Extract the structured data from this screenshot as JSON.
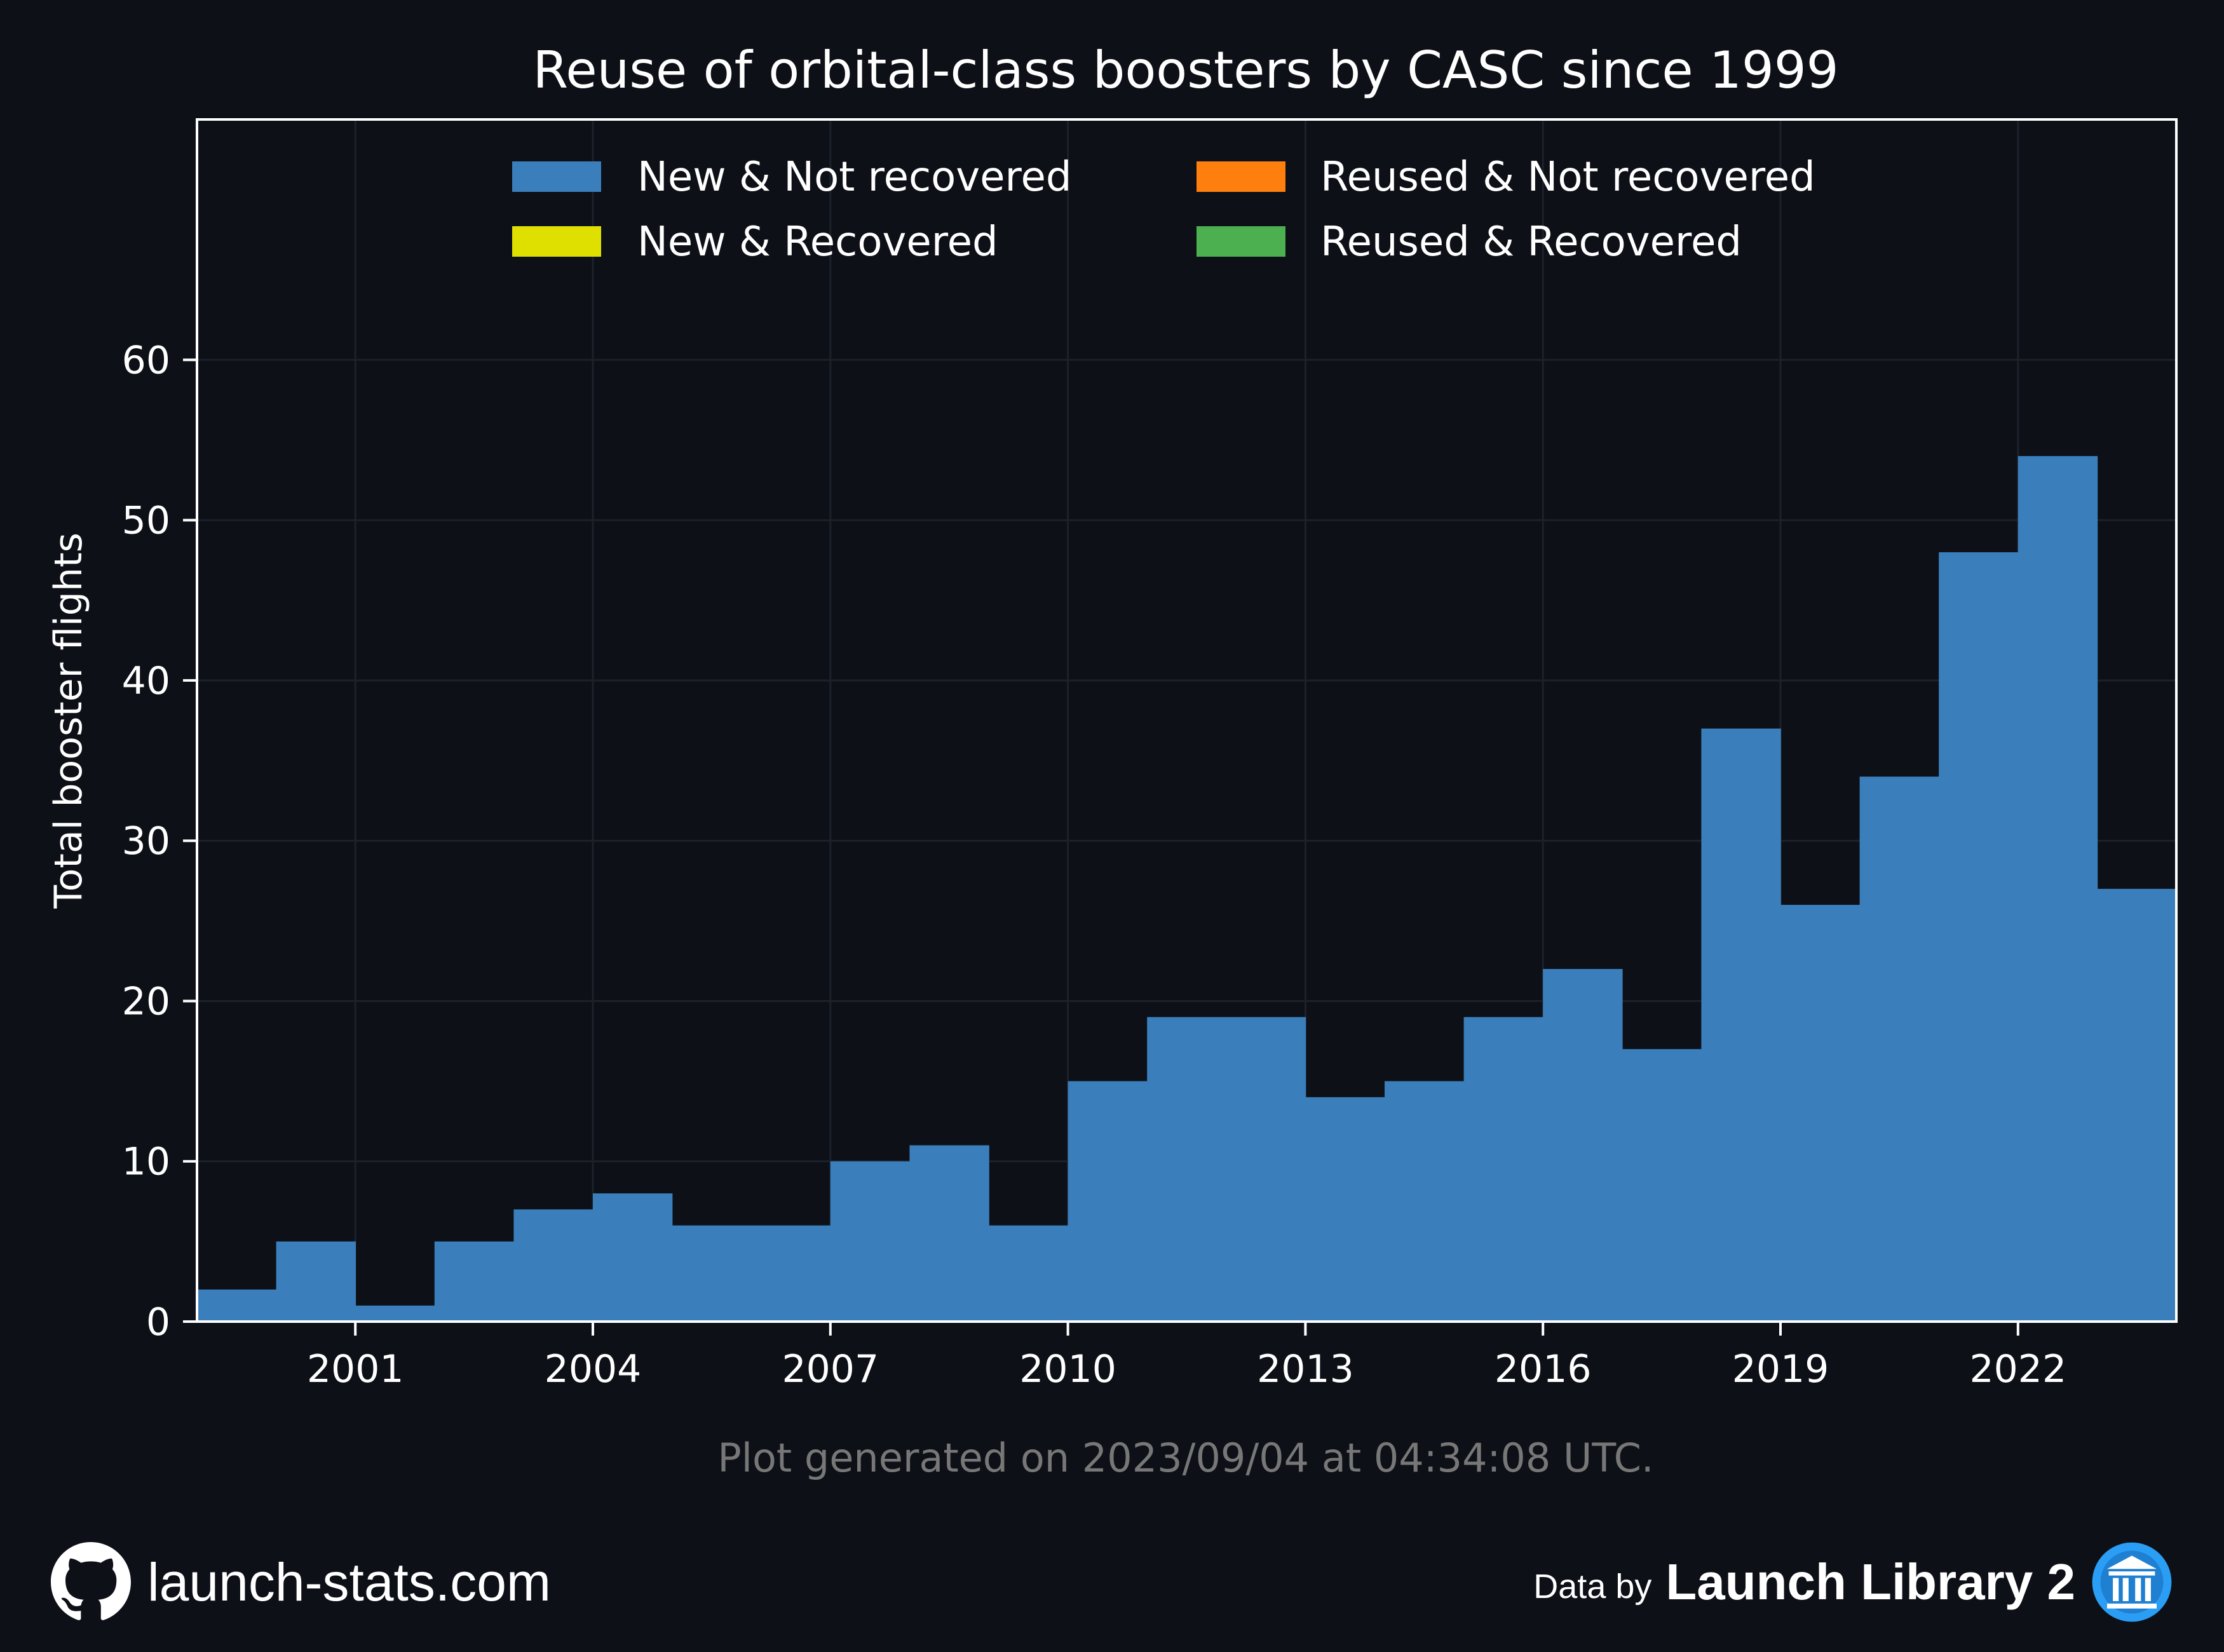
{
  "chart_data": {
    "type": "bar",
    "title": "Reuse of orbital-class boosters by CASC since 1999",
    "ylabel": "Total booster flights",
    "xlabel": "",
    "x_start_year": 1999,
    "x_end_year": 2024,
    "categories": [
      "1999",
      "2000",
      "2001",
      "2002",
      "2003",
      "2004",
      "2005",
      "2006",
      "2007",
      "2008",
      "2009",
      "2010",
      "2011",
      "2012",
      "2013",
      "2014",
      "2015",
      "2016",
      "2017",
      "2018",
      "2019",
      "2020",
      "2021",
      "2022",
      "2023"
    ],
    "series": [
      {
        "name": "New & Not recovered",
        "color": "#3a7fbb",
        "values": [
          2,
          5,
          1,
          5,
          7,
          8,
          6,
          6,
          10,
          11,
          6,
          15,
          19,
          19,
          14,
          15,
          19,
          22,
          17,
          37,
          26,
          34,
          48,
          54,
          27
        ]
      },
      {
        "name": "New & Recovered",
        "color": "#e0e000",
        "values": [
          0,
          0,
          0,
          0,
          0,
          0,
          0,
          0,
          0,
          0,
          0,
          0,
          0,
          0,
          0,
          0,
          0,
          0,
          0,
          0,
          0,
          0,
          0,
          0,
          0
        ]
      },
      {
        "name": "Reused & Not recovered",
        "color": "#ff7f0e",
        "values": [
          0,
          0,
          0,
          0,
          0,
          0,
          0,
          0,
          0,
          0,
          0,
          0,
          0,
          0,
          0,
          0,
          0,
          0,
          0,
          0,
          0,
          0,
          0,
          0,
          0
        ]
      },
      {
        "name": "Reused & Recovered",
        "color": "#4caf50",
        "values": [
          0,
          0,
          0,
          0,
          0,
          0,
          0,
          0,
          0,
          0,
          0,
          0,
          0,
          0,
          0,
          0,
          0,
          0,
          0,
          0,
          0,
          0,
          0,
          0,
          0
        ]
      }
    ],
    "ylim": [
      0,
      75
    ],
    "y_ticks": [
      0,
      10,
      20,
      30,
      40,
      50,
      60
    ],
    "x_ticks": [
      2001,
      2004,
      2007,
      2010,
      2013,
      2016,
      2019,
      2022
    ],
    "grid": true,
    "legend_position": "top"
  },
  "footnote": "Plot generated on 2023/09/04 at 04:34:08 UTC.",
  "footer": {
    "site": "launch-stats.com",
    "data_by": "Data by",
    "brand": "Launch Library 2"
  },
  "icons": {
    "left": "github-icon",
    "right": "launch-library-logo-icon"
  },
  "colors": {
    "background": "#0d1017",
    "grid": "#1c212b",
    "axis": "#ffffff",
    "footnote": "#777777"
  }
}
